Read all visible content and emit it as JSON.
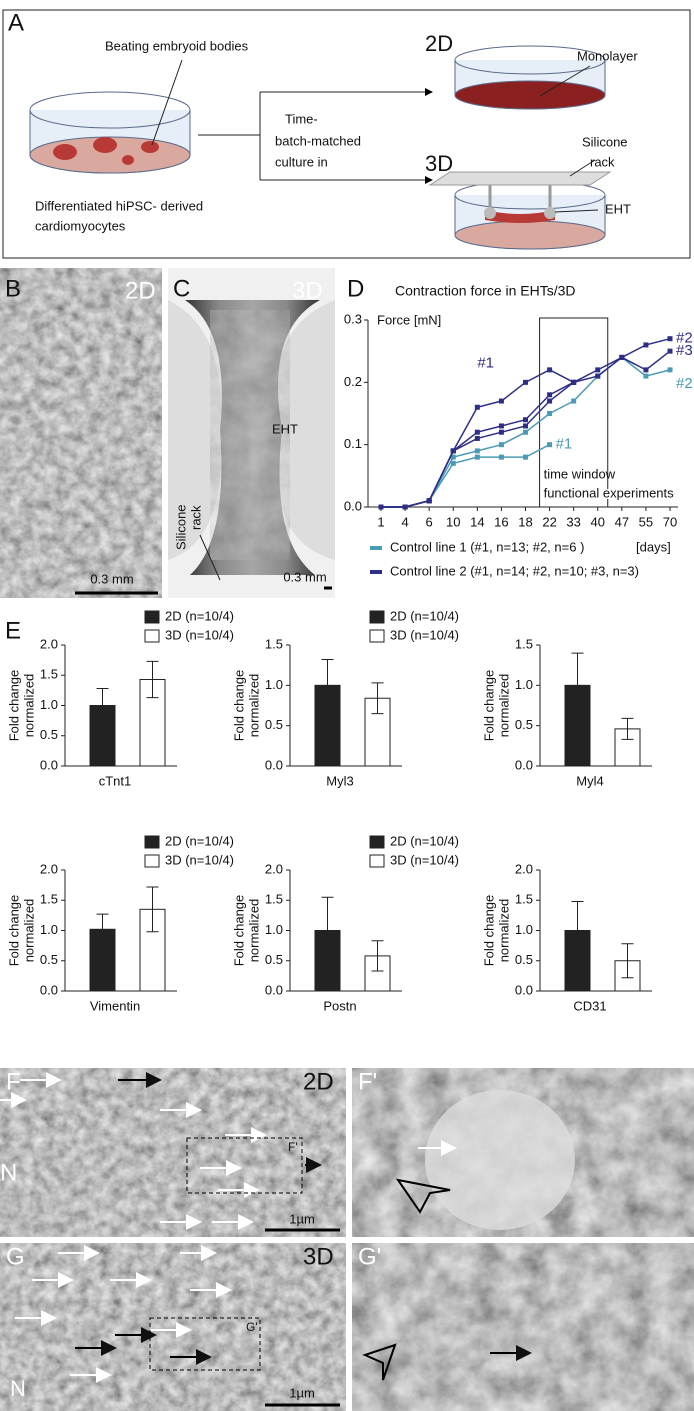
{
  "panel_a": {
    "label": "A",
    "embryoid_label": "Beating embryoid bodies",
    "source_lines": [
      "Differentiated hiPSC- derived",
      "cardiomyocytes"
    ],
    "culture_lines": [
      "Time-",
      "batch-matched",
      "culture in"
    ],
    "top_title": "2D",
    "top_label": "Monolayer",
    "bottom_title": "3D",
    "rack_lines": [
      "Silicone",
      "rack"
    ],
    "eht_label": "EHT"
  },
  "panel_b": {
    "label": "B",
    "title": "2D",
    "scale": "0.3 mm"
  },
  "panel_c": {
    "label": "C",
    "title": "3D",
    "eht_label": "EHT",
    "rack_lines": [
      "Silicone",
      "rack"
    ],
    "scale": "0.3 mm"
  },
  "panel_d_label": "D",
  "panel_e_label": "E",
  "chart_data": [
    {
      "type": "line",
      "title": "Contraction force in EHTs/3D",
      "y_label": "Force [mN]",
      "x_unit": "[days]",
      "categories": [
        "1",
        "4",
        "6",
        "10",
        "14",
        "16",
        "18",
        "22",
        "33",
        "40",
        "47",
        "55",
        "70"
      ],
      "ylim": [
        0,
        0.3
      ],
      "yticks": [
        {
          "value": 0,
          "label": "0.0"
        },
        0.1,
        0.2,
        0.3
      ],
      "annotation_lines": [
        "time window",
        "functional experiments"
      ],
      "groups": [
        {
          "name": "Control line 1 (#1, n=13; #2, n=6 )",
          "color": "#4a9bb5",
          "series": [
            {
              "name": "#1",
              "values": [
                0,
                0,
                0.01,
                0.07,
                0.08,
                0.08,
                0.08,
                0.1,
                null,
                null,
                null,
                null,
                null
              ]
            },
            {
              "name": "#2",
              "values": [
                0,
                0,
                0.01,
                0.08,
                0.09,
                0.1,
                0.12,
                0.15,
                0.17,
                0.21,
                0.24,
                0.21,
                0.22
              ]
            }
          ]
        },
        {
          "name": "Control line 2 (#1, n=14; #2, n=10; #3, n=3)",
          "color": "#2e2e85",
          "series": [
            {
              "name": "#1",
              "values": [
                0,
                0,
                0.01,
                0.09,
                0.16,
                0.17,
                0.2,
                0.22,
                0.2,
                null,
                null,
                null,
                null
              ]
            },
            {
              "name": "#2",
              "values": [
                0,
                0,
                0.01,
                0.09,
                0.12,
                0.13,
                0.14,
                0.18,
                0.2,
                0.22,
                0.24,
                0.26,
                0.27
              ]
            },
            {
              "name": "#3",
              "values": [
                0,
                0,
                0.01,
                0.09,
                0.11,
                0.12,
                0.13,
                0.17,
                0.2,
                0.21,
                0.24,
                0.22,
                0.25
              ]
            }
          ]
        }
      ]
    },
    {
      "type": "bar",
      "y_label_lines": [
        "Fold change",
        "normalized"
      ],
      "categories": [
        "cTnt1"
      ],
      "ylim": [
        0,
        2
      ],
      "yticks": [
        {
          "value": 0,
          "label": "0.0"
        },
        0.5,
        {
          "value": 1,
          "label": "1.0"
        },
        1.5,
        {
          "value": 2,
          "label": "2.0"
        }
      ],
      "series": [
        {
          "name": "2D (n=10/4)",
          "color": "#222222",
          "values": [
            1.0
          ],
          "errors": [
            0.28
          ]
        },
        {
          "name": "3D (n=10/4)",
          "color": "#ffffff",
          "values": [
            1.43
          ],
          "errors": [
            0.3
          ]
        }
      ]
    },
    {
      "type": "bar",
      "y_label_lines": [
        "Fold change",
        "normalized"
      ],
      "categories": [
        "Myl3"
      ],
      "ylim": [
        0,
        1.5
      ],
      "yticks": [
        {
          "value": 0,
          "label": "0.0"
        },
        0.5,
        {
          "value": 1,
          "label": "1.0"
        },
        1.5
      ],
      "series": [
        {
          "name": "2D (n=10/4)",
          "color": "#222222",
          "values": [
            1.0
          ],
          "errors": [
            0.32
          ]
        },
        {
          "name": "3D (n=10/4)",
          "color": "#ffffff",
          "values": [
            0.84
          ],
          "errors": [
            0.19
          ]
        }
      ]
    },
    {
      "type": "bar",
      "y_label_lines": [
        "Fold change",
        "normalized"
      ],
      "categories": [
        "Myl4"
      ],
      "ylim": [
        0,
        1.5
      ],
      "yticks": [
        {
          "value": 0,
          "label": "0.0"
        },
        0.5,
        {
          "value": 1,
          "label": "1.0"
        },
        1.5
      ],
      "series": [
        {
          "color": "#222222",
          "values": [
            1.0
          ],
          "errors": [
            0.4
          ]
        },
        {
          "color": "#ffffff",
          "values": [
            0.46
          ],
          "errors": [
            0.13
          ]
        }
      ]
    },
    {
      "type": "bar",
      "y_label_lines": [
        "Fold change",
        "normalized"
      ],
      "categories": [
        "Vimentin"
      ],
      "ylim": [
        0,
        2
      ],
      "yticks": [
        {
          "value": 0,
          "label": "0.0"
        },
        0.5,
        {
          "value": 1,
          "label": "1.0"
        },
        1.5,
        {
          "value": 2,
          "label": "2.0"
        }
      ],
      "series": [
        {
          "name": "2D (n=10/4)",
          "color": "#222222",
          "values": [
            1.02
          ],
          "errors": [
            0.25
          ]
        },
        {
          "name": "3D (n=10/4)",
          "color": "#ffffff",
          "values": [
            1.35
          ],
          "errors": [
            0.37
          ]
        }
      ]
    },
    {
      "type": "bar",
      "y_label_lines": [
        "Fold change",
        "normalized"
      ],
      "categories": [
        "Postn"
      ],
      "ylim": [
        0,
        2
      ],
      "yticks": [
        {
          "value": 0,
          "label": "0.0"
        },
        0.5,
        {
          "value": 1,
          "label": "1.0"
        },
        1.5,
        {
          "value": 2,
          "label": "2.0"
        }
      ],
      "series": [
        {
          "name": "2D (n=10/4)",
          "color": "#222222",
          "values": [
            1.0
          ],
          "errors": [
            0.55
          ]
        },
        {
          "name": "3D (n=10/4)",
          "color": "#ffffff",
          "values": [
            0.58
          ],
          "errors": [
            0.25
          ]
        }
      ]
    },
    {
      "type": "bar",
      "y_label_lines": [
        "Fold change",
        "normalized"
      ],
      "categories": [
        "CD31"
      ],
      "ylim": [
        0,
        2
      ],
      "yticks": [
        {
          "value": 0,
          "label": "0.0"
        },
        0.5,
        {
          "value": 1,
          "label": "1.0"
        },
        1.5,
        {
          "value": 2,
          "label": "2.0"
        }
      ],
      "series": [
        {
          "color": "#222222",
          "values": [
            1.0
          ],
          "errors": [
            0.48
          ]
        },
        {
          "color": "#ffffff",
          "values": [
            0.5
          ],
          "errors": [
            0.28
          ]
        }
      ]
    }
  ],
  "panel_f": {
    "label": "F",
    "title": "2D",
    "inset": "F'",
    "nucleus": "N",
    "scale": "1µm"
  },
  "panel_f_zoom": {
    "label": "F'"
  },
  "panel_g": {
    "label": "G",
    "title": "3D",
    "inset": "G'",
    "nucleus": "N",
    "scale": "1µm"
  },
  "panel_g_zoom": {
    "label": "G'"
  }
}
